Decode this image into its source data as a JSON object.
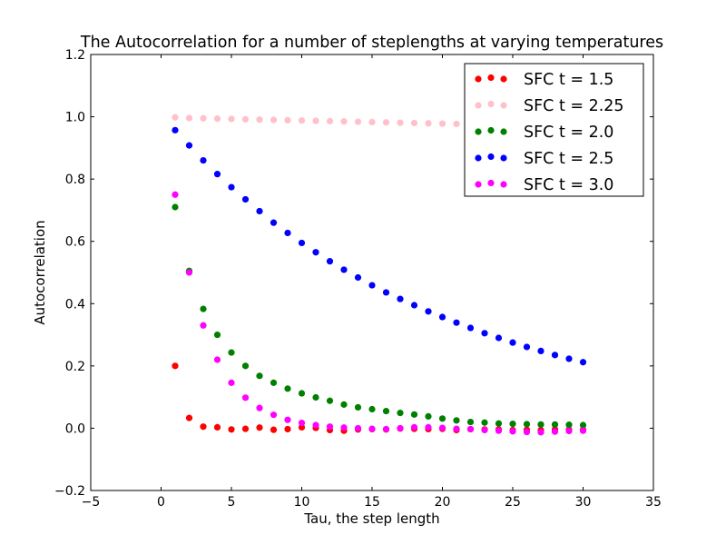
{
  "chart_data": {
    "type": "scatter",
    "title": "The Autocorrelation for a number of steplengths at varying temperatures",
    "xlabel": "Tau, the step length",
    "ylabel": "Autocorrelation",
    "xlim": [
      -5,
      35
    ],
    "ylim": [
      -0.2,
      1.2
    ],
    "xticks": [
      -5,
      0,
      5,
      10,
      15,
      20,
      25,
      30,
      35
    ],
    "yticks": [
      -0.2,
      0.0,
      0.2,
      0.4,
      0.6,
      0.8,
      1.0,
      1.2
    ],
    "xtick_labels": [
      "−5",
      "0",
      "5",
      "10",
      "15",
      "20",
      "25",
      "30",
      "35"
    ],
    "ytick_labels": [
      "−0.2",
      "0.0",
      "0.2",
      "0.4",
      "0.6",
      "0.8",
      "1.0",
      "1.2"
    ],
    "grid": false,
    "legend_position": "top-right",
    "x": [
      1,
      2,
      3,
      4,
      5,
      6,
      7,
      8,
      9,
      10,
      11,
      12,
      13,
      14,
      15,
      16,
      17,
      18,
      19,
      20,
      21,
      22,
      23,
      24,
      25,
      26,
      27,
      28,
      29,
      30
    ],
    "series": [
      {
        "name": "SFC t = 1.5",
        "color": "#ff0000",
        "values": [
          0.2,
          0.033,
          0.005,
          0.003,
          -0.004,
          -0.002,
          0.002,
          -0.005,
          -0.003,
          0.003,
          0.001,
          -0.006,
          -0.008,
          -0.004,
          -0.003,
          -0.004,
          -0.001,
          -0.002,
          -0.003,
          -0.002,
          -0.006,
          -0.003,
          -0.004,
          -0.004,
          -0.006,
          -0.005,
          -0.006,
          -0.004,
          -0.005,
          -0.005
        ]
      },
      {
        "name": "SFC t = 2.25",
        "color": "#ffc0cb",
        "values": [
          0.998,
          0.996,
          0.995,
          0.994,
          0.993,
          0.992,
          0.991,
          0.99,
          0.989,
          0.988,
          0.987,
          0.986,
          0.985,
          0.984,
          0.983,
          0.982,
          0.981,
          0.98,
          0.979,
          0.978,
          0.977,
          0.976,
          0.975,
          0.974,
          0.973,
          0.972,
          0.971,
          0.97,
          0.969,
          0.968
        ]
      },
      {
        "name": "SFC t = 2.0",
        "color": "#008000",
        "values": [
          0.71,
          0.505,
          0.383,
          0.3,
          0.243,
          0.2,
          0.168,
          0.146,
          0.127,
          0.112,
          0.099,
          0.088,
          0.076,
          0.067,
          0.061,
          0.055,
          0.049,
          0.044,
          0.038,
          0.031,
          0.025,
          0.02,
          0.018,
          0.015,
          0.014,
          0.013,
          0.012,
          0.012,
          0.011,
          0.01
        ]
      },
      {
        "name": "SFC t = 2.5",
        "color": "#0000ff",
        "values": [
          0.957,
          0.908,
          0.86,
          0.816,
          0.774,
          0.735,
          0.697,
          0.66,
          0.627,
          0.595,
          0.565,
          0.536,
          0.509,
          0.484,
          0.459,
          0.436,
          0.415,
          0.395,
          0.375,
          0.357,
          0.339,
          0.322,
          0.305,
          0.29,
          0.275,
          0.261,
          0.248,
          0.235,
          0.223,
          0.212
        ]
      },
      {
        "name": "SFC t = 3.0",
        "color": "#ff00ff",
        "values": [
          0.75,
          0.5,
          0.33,
          0.22,
          0.146,
          0.098,
          0.065,
          0.043,
          0.027,
          0.017,
          0.01,
          0.005,
          0.002,
          0.0,
          -0.002,
          -0.003,
          0.0,
          0.003,
          0.003,
          0.001,
          -0.002,
          -0.003,
          -0.006,
          -0.008,
          -0.01,
          -0.012,
          -0.013,
          -0.011,
          -0.009,
          -0.008
        ]
      }
    ]
  }
}
